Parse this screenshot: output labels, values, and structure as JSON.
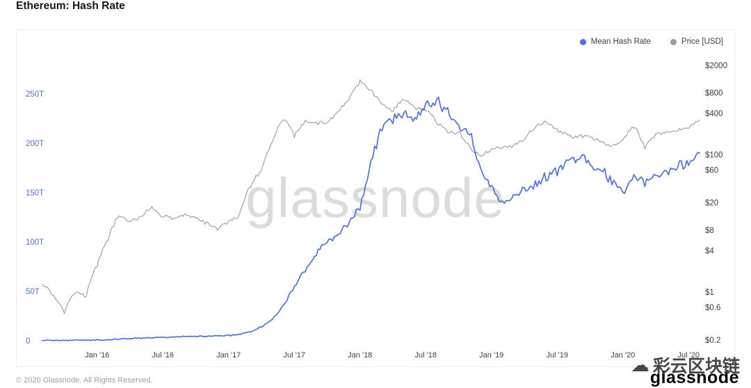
{
  "header": {
    "title": "Ethereum: Hash Rate"
  },
  "watermarks": {
    "center": "glassnode",
    "bottom_right_logo": "glassnode",
    "bottom_right_cn": "彩云区块链"
  },
  "icons": {
    "cloud": "☁"
  },
  "footer": {
    "copyright": "© 2020 Glassnode. All Rights Reserved."
  },
  "chart_data": {
    "type": "line",
    "title": "Ethereum: Hash Rate",
    "x_start": "2015-08",
    "x_step_months": 1,
    "points": 61,
    "grid": false,
    "legend_position": "top-right",
    "series": [
      {
        "name": "Mean Hash Rate",
        "axis": "left",
        "unit": "TH/s",
        "color": "#4e6ef2",
        "values": [
          0.2,
          0.3,
          0.4,
          0.5,
          0.6,
          0.8,
          1.2,
          1.8,
          2.2,
          2.5,
          3.0,
          3.4,
          3.8,
          4.2,
          4.5,
          4.3,
          4.6,
          5.2,
          6.5,
          9,
          14,
          22,
          35,
          55,
          72,
          88,
          100,
          108,
          118,
          135,
          180,
          215,
          225,
          232,
          222,
          235,
          244,
          232,
          218,
          212,
          175,
          155,
          138,
          145,
          152,
          158,
          166,
          172,
          182,
          186,
          180,
          176,
          160,
          150,
          168,
          160,
          166,
          172,
          176,
          180,
          190
        ]
      },
      {
        "name": "Price [USD]",
        "axis": "right",
        "unit": "USD",
        "color": "#9a9a9a",
        "values": [
          1.3,
          0.9,
          0.5,
          1.0,
          0.87,
          2.4,
          6,
          13,
          10.5,
          12.5,
          17.5,
          12.5,
          11.5,
          13.5,
          12,
          10,
          8.2,
          10.5,
          13,
          35,
          60,
          150,
          340,
          190,
          300,
          290,
          300,
          400,
          650,
          1150,
          850,
          550,
          430,
          650,
          480,
          450,
          290,
          220,
          210,
          130,
          95,
          120,
          125,
          137,
          165,
          255,
          300,
          230,
          190,
          185,
          180,
          155,
          132,
          160,
          255,
          120,
          200,
          210,
          230,
          250,
          320
        ]
      }
    ],
    "left_axis": {
      "scale": "linear",
      "color": "#5571d9",
      "ticks": [
        {
          "value": 0,
          "label": "0"
        },
        {
          "value": 50,
          "label": "50T"
        },
        {
          "value": 100,
          "label": "100T"
        },
        {
          "value": 150,
          "label": "150T"
        },
        {
          "value": 200,
          "label": "200T"
        },
        {
          "value": 250,
          "label": "250T"
        }
      ]
    },
    "right_axis": {
      "scale": "log",
      "color": "#383c44",
      "ticks": [
        {
          "value": 2000,
          "label": "$2000"
        },
        {
          "value": 800,
          "label": "$800"
        },
        {
          "value": 400,
          "label": "$400"
        },
        {
          "value": 100,
          "label": "$100"
        },
        {
          "value": 60,
          "label": "$60"
        },
        {
          "value": 20,
          "label": "$20"
        },
        {
          "value": 8,
          "label": "$8"
        },
        {
          "value": 4,
          "label": "$4"
        },
        {
          "value": 1,
          "label": "$1"
        },
        {
          "value": 0.6,
          "label": "$0.6"
        },
        {
          "value": 0.2,
          "label": "$0.2"
        }
      ]
    },
    "x_axis": {
      "color": "#3c4049",
      "ticks": [
        {
          "m": 5,
          "label": "Jan '16"
        },
        {
          "m": 11,
          "label": "Jul '16"
        },
        {
          "m": 17,
          "label": "Jan '17"
        },
        {
          "m": 23,
          "label": "Jul '17"
        },
        {
          "m": 29,
          "label": "Jan '18"
        },
        {
          "m": 35,
          "label": "Jul '18"
        },
        {
          "m": 41,
          "label": "Jan '19"
        },
        {
          "m": 47,
          "label": "Jul '19"
        },
        {
          "m": 53,
          "label": "Jan '20"
        },
        {
          "m": 59,
          "label": "Jul '20"
        }
      ]
    }
  }
}
